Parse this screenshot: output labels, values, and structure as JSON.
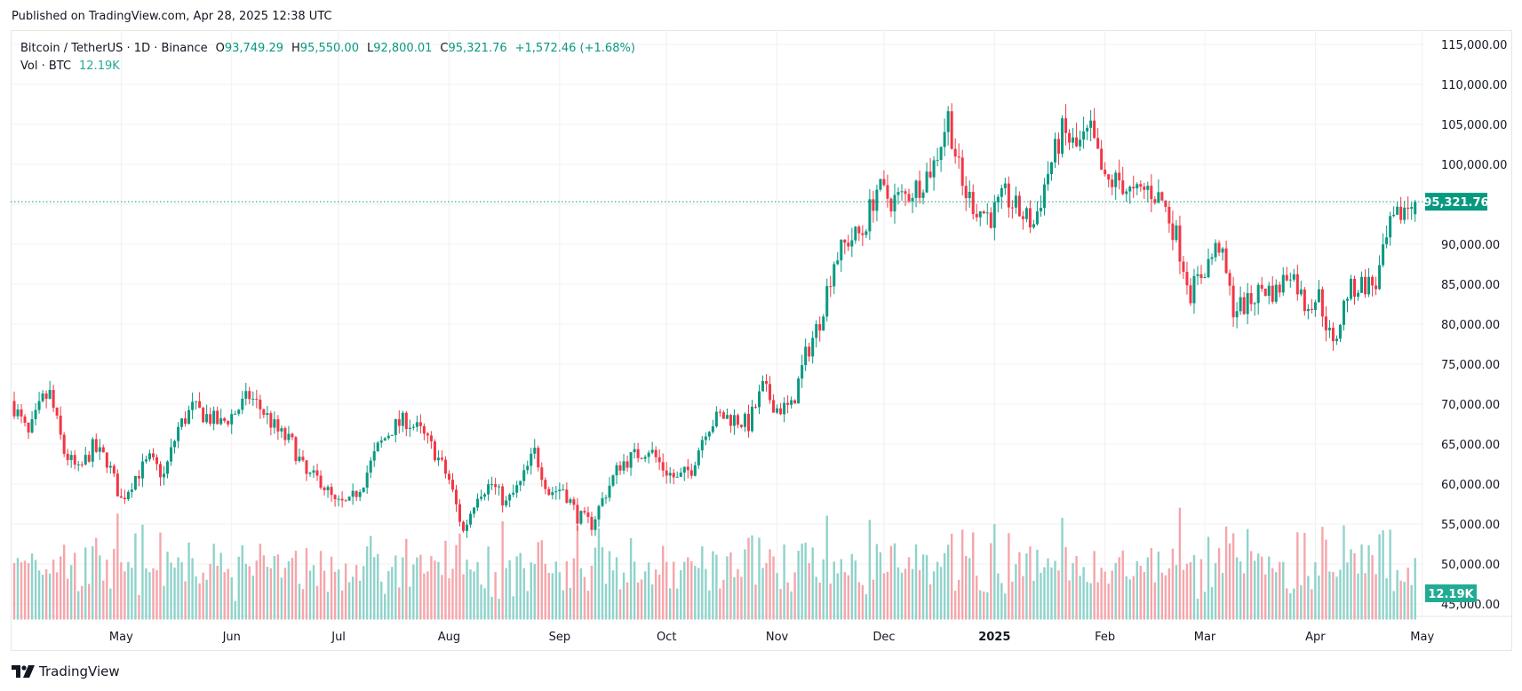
{
  "header": {
    "published": "Published on TradingView.com, Apr 28, 2025 12:38 UTC"
  },
  "legend": {
    "symbol": "Bitcoin / TetherUS · 1D · Binance",
    "open_label": "O",
    "open": "93,749.29",
    "high_label": "H",
    "high": "95,550.00",
    "low_label": "L",
    "low": "92,800.01",
    "close_label": "C",
    "close": "95,321.76",
    "change": "+1,572.46 (+1.68%)",
    "vol_label": "Vol · BTC",
    "vol_value": "12.19K"
  },
  "footer": {
    "brand": "TradingView"
  },
  "colors": {
    "up": "#089981",
    "down": "#f23645",
    "vol_up": "#8fd3cb",
    "vol_down": "#f5a6ab",
    "grid": "#f0f0f0",
    "badge": "#089981",
    "vol_badge": "#22ab94"
  },
  "chart_data": {
    "type": "candlestick",
    "title": "Bitcoin / TetherUS · 1D · Binance",
    "ylim": [
      43000,
      117000
    ],
    "y_ticks": [
      "115,000.00",
      "110,000.00",
      "105,000.00",
      "100,000.00",
      "90,000.00",
      "85,000.00",
      "80,000.00",
      "75,000.00",
      "70,000.00",
      "65,000.00",
      "60,000.00",
      "55,000.00",
      "50,000.00",
      "45,000.00"
    ],
    "y_tick_values": [
      115000,
      110000,
      105000,
      100000,
      90000,
      85000,
      80000,
      75000,
      70000,
      65000,
      60000,
      55000,
      50000,
      45000
    ],
    "x_ticks": [
      "May",
      "Jun",
      "Jul",
      "Aug",
      "Sep",
      "Oct",
      "Nov",
      "Dec",
      "2025",
      "Feb",
      "Mar",
      "Apr",
      "May"
    ],
    "x_tick_days": [
      30,
      61,
      91,
      122,
      153,
      183,
      214,
      244,
      275,
      306,
      334,
      365,
      395
    ],
    "x_tick_bold": [
      false,
      false,
      false,
      false,
      false,
      false,
      false,
      false,
      true,
      false,
      false,
      false,
      false
    ],
    "last_price": 95321.76,
    "last_price_label": "95,321.76",
    "last_volume_label": "12.19K",
    "anchors": [
      [
        0,
        69700
      ],
      [
        4,
        66000
      ],
      [
        8,
        70500
      ],
      [
        10,
        71200
      ],
      [
        14,
        64000
      ],
      [
        18,
        61500
      ],
      [
        22,
        64500
      ],
      [
        26,
        63000
      ],
      [
        30,
        58000
      ],
      [
        34,
        61000
      ],
      [
        38,
        63000
      ],
      [
        42,
        61000
      ],
      [
        46,
        67000
      ],
      [
        50,
        69500
      ],
      [
        54,
        68500
      ],
      [
        58,
        67500
      ],
      [
        62,
        69000
      ],
      [
        66,
        71000
      ],
      [
        70,
        69000
      ],
      [
        74,
        66500
      ],
      [
        78,
        65000
      ],
      [
        82,
        61000
      ],
      [
        86,
        60500
      ],
      [
        90,
        57500
      ],
      [
        94,
        57500
      ],
      [
        98,
        60500
      ],
      [
        102,
        64500
      ],
      [
        106,
        67000
      ],
      [
        110,
        68000
      ],
      [
        114,
        66500
      ],
      [
        118,
        64000
      ],
      [
        122,
        60500
      ],
      [
        126,
        54000
      ],
      [
        130,
        59000
      ],
      [
        134,
        60000
      ],
      [
        138,
        57500
      ],
      [
        142,
        60000
      ],
      [
        146,
        64000
      ],
      [
        150,
        59000
      ],
      [
        154,
        59500
      ],
      [
        158,
        56000
      ],
      [
        162,
        55000
      ],
      [
        166,
        59000
      ],
      [
        170,
        62500
      ],
      [
        174,
        63500
      ],
      [
        178,
        64500
      ],
      [
        182,
        62000
      ],
      [
        186,
        60500
      ],
      [
        190,
        62000
      ],
      [
        194,
        67000
      ],
      [
        198,
        68500
      ],
      [
        202,
        68200
      ],
      [
        206,
        67500
      ],
      [
        210,
        72000
      ],
      [
        214,
        69500
      ],
      [
        218,
        69500
      ],
      [
        222,
        76000
      ],
      [
        226,
        80500
      ],
      [
        230,
        88000
      ],
      [
        234,
        90500
      ],
      [
        238,
        91500
      ],
      [
        242,
        97000
      ],
      [
        246,
        95500
      ],
      [
        250,
        96000
      ],
      [
        254,
        97500
      ],
      [
        258,
        100000
      ],
      [
        262,
        106000
      ],
      [
        266,
        97000
      ],
      [
        270,
        94500
      ],
      [
        274,
        93500
      ],
      [
        278,
        96000
      ],
      [
        282,
        94000
      ],
      [
        286,
        92500
      ],
      [
        290,
        99000
      ],
      [
        294,
        104000
      ],
      [
        298,
        102000
      ],
      [
        302,
        104000
      ],
      [
        306,
        97500
      ],
      [
        310,
        98000
      ],
      [
        314,
        96000
      ],
      [
        318,
        97000
      ],
      [
        322,
        95500
      ],
      [
        326,
        91000
      ],
      [
        330,
        84000
      ],
      [
        334,
        87000
      ],
      [
        338,
        90000
      ],
      [
        342,
        82000
      ],
      [
        346,
        82500
      ],
      [
        350,
        84500
      ],
      [
        354,
        84000
      ],
      [
        358,
        87000
      ],
      [
        362,
        82500
      ],
      [
        366,
        83500
      ],
      [
        370,
        77000
      ],
      [
        374,
        84000
      ],
      [
        378,
        85000
      ],
      [
        382,
        85000
      ],
      [
        386,
        92000
      ],
      [
        390,
        94500
      ],
      [
        393,
        95321.76
      ]
    ],
    "volume_range_k": [
      0,
      60
    ]
  }
}
